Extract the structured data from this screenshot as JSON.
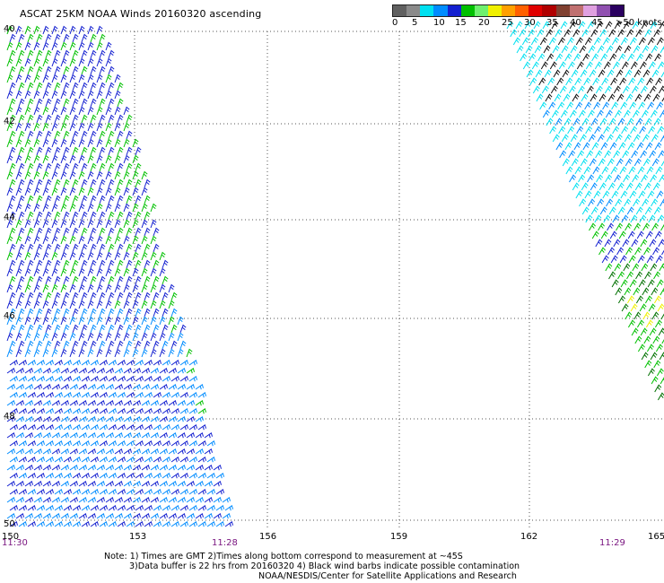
{
  "header": {
    "title": "ASCAT 25KM NOAA Winds 20160320 ascending"
  },
  "legend": {
    "colors": [
      "#606060",
      "#8a8a8a",
      "#00e0f0",
      "#008cff",
      "#1420d0",
      "#00c000",
      "#6ef06e",
      "#f0f000",
      "#ffa000",
      "#ff6000",
      "#e00000",
      "#b00000",
      "#804030",
      "#c07070",
      "#e0a0e0",
      "#9050b0",
      "#2a0060"
    ],
    "ticks": [
      "0",
      "5",
      "10",
      "15",
      "20",
      "25",
      "30",
      "35",
      "40",
      "45",
      ">50 knots"
    ]
  },
  "axes": {
    "lat_labels": [
      "40",
      "42",
      "44",
      "46",
      "48",
      "50"
    ],
    "lon_labels": [
      "150",
      "153",
      "156",
      "159",
      "162",
      "165"
    ]
  },
  "times": {
    "left": "11:30",
    "mid": "11:28",
    "right": "11:29"
  },
  "notes": {
    "line1": "Note: 1) Times are GMT 2)Times along bottom correspond to measurement at ~45S",
    "line2": "3)Data buffer is 22 hrs from 20160320 4) Black wind barbs indicate possible contamination",
    "line3": "NOAA/NESDIS/Center for Satellite Applications and Research"
  }
}
